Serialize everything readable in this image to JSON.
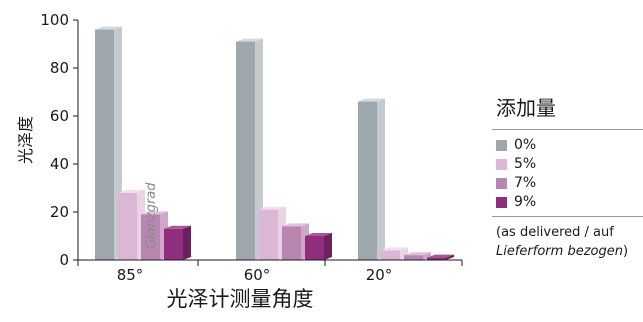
{
  "chart_data": {
    "type": "bar",
    "categories": [
      "85°",
      "60°",
      "20°"
    ],
    "series": [
      {
        "name": "0%",
        "values": [
          96,
          91,
          66
        ],
        "color": "#9ea7ad",
        "side": "#c4cace",
        "top": "#d3d8db"
      },
      {
        "name": "5%",
        "values": [
          28,
          21,
          4
        ],
        "color": "#dcb7d5",
        "side": "#ead3e5",
        "top": "#f1e1ed"
      },
      {
        "name": "7%",
        "values": [
          19,
          14,
          2
        ],
        "color": "#b886b0",
        "side": "#cfa8c9",
        "top": "#dfc2da"
      },
      {
        "name": "9%",
        "values": [
          13,
          10,
          1
        ],
        "color": "#8e2e7c",
        "side": "#6e1f5f",
        "top": "#a8559a"
      }
    ],
    "ylim": [
      0,
      100
    ],
    "yticks": [
      0,
      20,
      40,
      60,
      80,
      100
    ],
    "ylabel": "光泽度",
    "xlabel": "光泽计测量角度",
    "overlay_label": "Glanzgrad",
    "legend_position": "right",
    "grid": false
  },
  "legend": {
    "title": "添加量",
    "note_line1": "(as delivered / auf",
    "note_line2_italic": "Lieferform bezogen",
    "note_line2_tail": ")"
  }
}
